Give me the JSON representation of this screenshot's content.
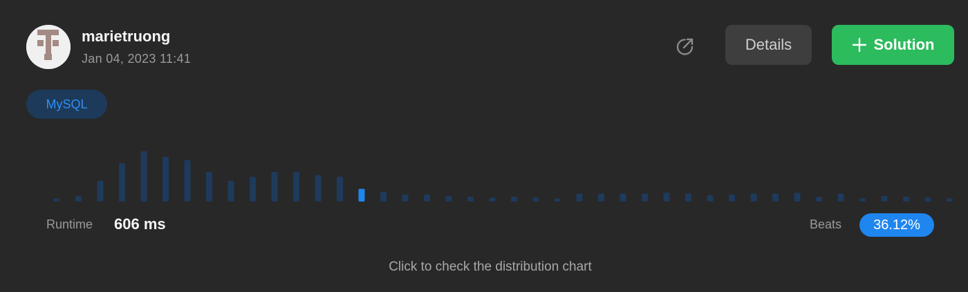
{
  "user": {
    "name": "marietruong",
    "timestamp": "Jan 04, 2023 11:41"
  },
  "toolbar": {
    "share_icon": "share-icon",
    "details_label": "Details",
    "solution_icon": "plus-icon",
    "solution_label": "Solution",
    "accent_color": "#2cbb5d"
  },
  "language": "MySQL",
  "runtime": {
    "label": "Runtime",
    "value": "606 ms"
  },
  "beats": {
    "label": "Beats",
    "value": "36.12%"
  },
  "hint": "Click to check the distribution chart",
  "chart_data": {
    "type": "bar",
    "values": [
      4,
      7,
      26,
      48,
      63,
      56,
      52,
      37,
      26,
      31,
      37,
      37,
      33,
      31,
      16,
      12,
      9,
      9,
      7,
      6,
      5,
      6,
      5,
      4,
      10,
      10,
      10,
      10,
      11,
      10,
      8,
      9,
      10,
      10,
      11,
      6,
      10,
      4,
      7,
      6,
      5,
      4
    ],
    "highlight_index": 14,
    "bar_color": "#1e3a5c",
    "highlight_color": "#1f86ef",
    "grid": false
  }
}
